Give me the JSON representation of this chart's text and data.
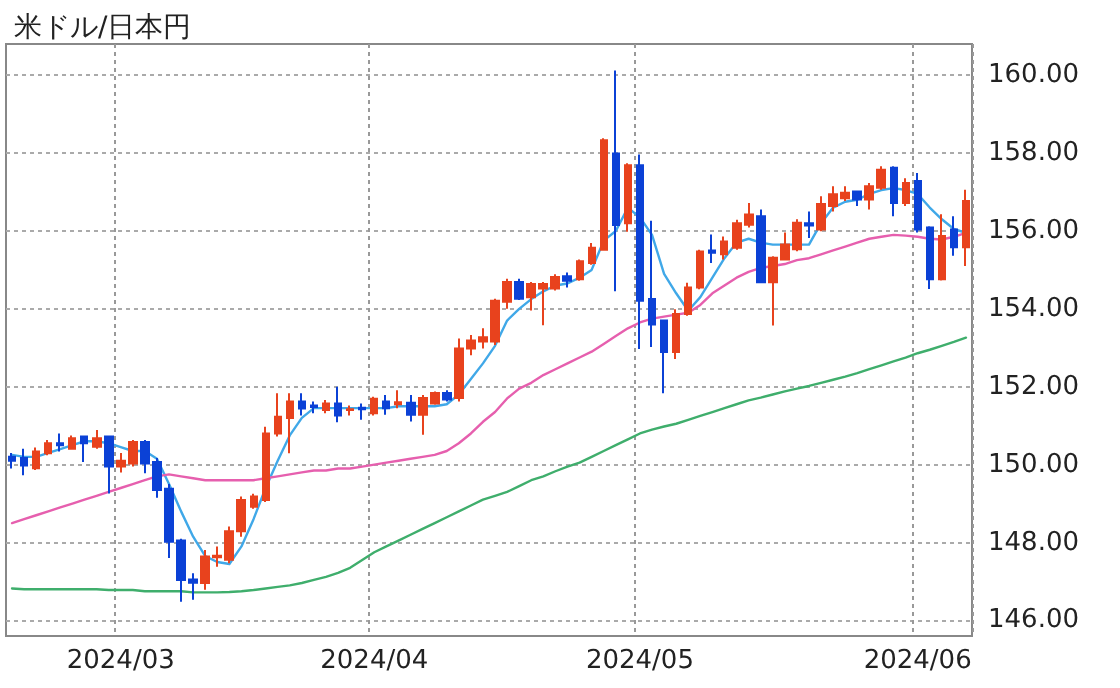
{
  "chart_data": {
    "type": "candlestick",
    "title": "米ドル/日本円",
    "categories": [
      null,
      null,
      null,
      null,
      null,
      null,
      null,
      null,
      null,
      "2024/03",
      null,
      null,
      null,
      null,
      null,
      null,
      null,
      null,
      null,
      null,
      null,
      null,
      null,
      null,
      null,
      null,
      null,
      null,
      null,
      null,
      "2024/04",
      null,
      null,
      null,
      null,
      null,
      null,
      null,
      null,
      null,
      null,
      null,
      null,
      null,
      null,
      null,
      null,
      null,
      null,
      null,
      null,
      null,
      "2024/05",
      null,
      null,
      null,
      null,
      null,
      null,
      null,
      null,
      null,
      null,
      null,
      null,
      null,
      null,
      null,
      null,
      null,
      null,
      null,
      null,
      null,
      null,
      "2024/06",
      null,
      null,
      null,
      null
    ],
    "ohlc": [
      [
        150.2,
        150.3,
        149.9,
        150.1
      ],
      [
        150.17,
        150.41,
        149.73,
        149.98
      ],
      [
        149.91,
        150.44,
        149.86,
        150.34
      ],
      [
        150.29,
        150.63,
        150.24,
        150.55
      ],
      [
        150.55,
        150.8,
        150.34,
        150.5
      ],
      [
        150.41,
        150.75,
        150.38,
        150.68
      ],
      [
        150.72,
        150.75,
        150.07,
        150.55
      ],
      [
        150.46,
        150.89,
        150.41,
        150.68
      ],
      [
        150.72,
        150.75,
        149.26,
        149.95
      ],
      [
        149.95,
        150.3,
        149.8,
        150.1
      ],
      [
        150.03,
        150.63,
        149.95,
        150.58
      ],
      [
        150.58,
        150.63,
        149.78,
        150.03
      ],
      [
        150.07,
        150.17,
        149.15,
        149.35
      ],
      [
        149.38,
        149.5,
        147.6,
        148.02
      ],
      [
        148.05,
        148.1,
        146.48,
        147.04
      ],
      [
        147.05,
        147.21,
        146.53,
        146.97
      ],
      [
        146.96,
        147.81,
        146.79,
        147.64
      ],
      [
        147.62,
        147.9,
        147.38,
        147.66
      ],
      [
        147.56,
        148.41,
        147.47,
        148.29
      ],
      [
        148.29,
        149.18,
        148.15,
        149.09
      ],
      [
        148.92,
        149.25,
        148.87,
        149.18
      ],
      [
        149.09,
        150.97,
        149.04,
        150.8
      ],
      [
        150.8,
        151.83,
        150.72,
        151.23
      ],
      [
        151.2,
        151.83,
        150.29,
        151.62
      ],
      [
        151.62,
        151.83,
        151.26,
        151.44
      ],
      [
        151.52,
        151.62,
        151.32,
        151.48
      ],
      [
        151.4,
        151.66,
        151.32,
        151.57
      ],
      [
        151.57,
        152.0,
        151.09,
        151.26
      ],
      [
        151.4,
        151.52,
        151.26,
        151.42
      ],
      [
        151.46,
        151.57,
        151.15,
        151.42
      ],
      [
        151.32,
        151.74,
        151.26,
        151.69
      ],
      [
        151.62,
        151.79,
        151.28,
        151.45
      ],
      [
        151.55,
        151.91,
        151.45,
        151.6
      ],
      [
        151.59,
        151.79,
        151.11,
        151.28
      ],
      [
        151.28,
        151.79,
        150.77,
        151.71
      ],
      [
        151.57,
        151.88,
        151.54,
        151.84
      ],
      [
        151.84,
        151.91,
        151.62,
        151.67
      ],
      [
        151.71,
        153.24,
        151.62,
        152.98
      ],
      [
        152.98,
        153.33,
        152.81,
        153.19
      ],
      [
        153.16,
        153.5,
        152.98,
        153.27
      ],
      [
        153.16,
        154.26,
        153.07,
        154.21
      ],
      [
        154.18,
        154.77,
        154.0,
        154.69
      ],
      [
        154.69,
        154.77,
        154.23,
        154.26
      ],
      [
        154.3,
        154.69,
        153.96,
        154.64
      ],
      [
        154.52,
        154.69,
        153.58,
        154.64
      ],
      [
        154.52,
        154.89,
        154.47,
        154.82
      ],
      [
        154.84,
        154.93,
        154.55,
        154.72
      ],
      [
        154.76,
        155.27,
        154.72,
        155.22
      ],
      [
        155.18,
        155.69,
        155.13,
        155.57
      ],
      [
        155.52,
        158.38,
        155.5,
        158.33
      ],
      [
        157.99,
        160.12,
        154.45,
        156.15
      ],
      [
        156.2,
        157.74,
        155.98,
        157.69
      ],
      [
        157.69,
        157.96,
        152.97,
        154.21
      ],
      [
        154.25,
        156.26,
        153.02,
        153.6
      ],
      [
        153.7,
        153.72,
        151.83,
        152.89
      ],
      [
        152.89,
        153.99,
        152.71,
        153.87
      ],
      [
        153.87,
        154.67,
        153.82,
        154.55
      ],
      [
        154.55,
        155.52,
        154.5,
        155.47
      ],
      [
        155.5,
        155.91,
        155.18,
        155.44
      ],
      [
        155.4,
        155.86,
        155.27,
        155.73
      ],
      [
        155.57,
        156.29,
        155.52,
        156.2
      ],
      [
        156.16,
        156.72,
        156.09,
        156.42
      ],
      [
        156.38,
        156.55,
        154.66,
        154.68
      ],
      [
        154.68,
        155.35,
        153.57,
        155.31
      ],
      [
        155.27,
        155.96,
        155.24,
        155.65
      ],
      [
        155.53,
        156.3,
        155.48,
        156.21
      ],
      [
        156.2,
        156.5,
        155.82,
        156.14
      ],
      [
        156.04,
        156.89,
        155.99,
        156.69
      ],
      [
        156.64,
        157.15,
        156.5,
        156.94
      ],
      [
        156.84,
        157.15,
        156.77,
        156.98
      ],
      [
        157.01,
        157.03,
        156.64,
        156.81
      ],
      [
        156.81,
        157.23,
        156.55,
        157.15
      ],
      [
        157.11,
        157.66,
        157.06,
        157.57
      ],
      [
        157.62,
        157.66,
        156.38,
        156.72
      ],
      [
        156.72,
        157.35,
        156.64,
        157.23
      ],
      [
        157.28,
        157.49,
        155.96,
        156.04
      ],
      [
        156.09,
        156.12,
        154.51,
        154.76
      ],
      [
        154.76,
        156.43,
        154.73,
        155.87
      ],
      [
        156.04,
        156.38,
        155.36,
        155.58
      ],
      [
        155.58,
        157.06,
        155.1,
        156.77
      ]
    ],
    "colors": [
      "#0b41d6",
      "#0b41d6",
      "#e8421d",
      "#e8421d",
      "#0b41d6",
      "#e8421d",
      "#0b41d6",
      "#e8421d",
      "#0b41d6",
      "#e8421d",
      "#e8421d",
      "#0b41d6",
      "#0b41d6",
      "#0b41d6",
      "#0b41d6",
      "#0b41d6",
      "#e8421d",
      "#e8421d",
      "#e8421d",
      "#e8421d",
      "#e8421d",
      "#e8421d",
      "#e8421d",
      "#e8421d",
      "#0b41d6",
      "#0b41d6",
      "#e8421d",
      "#0b41d6",
      "#e8421d",
      "#0b41d6",
      "#e8421d",
      "#0b41d6",
      "#e8421d",
      "#0b41d6",
      "#e8421d",
      "#e8421d",
      "#0b41d6",
      "#e8421d",
      "#e8421d",
      "#e8421d",
      "#e8421d",
      "#e8421d",
      "#0b41d6",
      "#e8421d",
      "#e8421d",
      "#e8421d",
      "#0b41d6",
      "#e8421d",
      "#e8421d",
      "#e8421d",
      "#0b41d6",
      "#e8421d",
      "#0b41d6",
      "#0b41d6",
      "#0b41d6",
      "#e8421d",
      "#e8421d",
      "#e8421d",
      "#0b41d6",
      "#e8421d",
      "#e8421d",
      "#e8421d",
      "#0b41d6",
      "#e8421d",
      "#e8421d",
      "#e8421d",
      "#0b41d6",
      "#e8421d",
      "#e8421d",
      "#e8421d",
      "#0b41d6",
      "#e8421d",
      "#e8421d",
      "#0b41d6",
      "#e8421d",
      "#0b41d6",
      "#0b41d6",
      "#e8421d",
      "#0b41d6",
      "#e8421d"
    ],
    "series": [
      {
        "type": "line",
        "color": "#40a8e8",
        "values": [
          150.25,
          150.2,
          150.2,
          150.3,
          150.4,
          150.5,
          150.6,
          150.6,
          150.55,
          150.45,
          150.35,
          150.35,
          150.15,
          149.5,
          148.8,
          148.15,
          147.65,
          147.5,
          147.45,
          147.9,
          148.6,
          149.4,
          150.1,
          150.75,
          151.2,
          151.45,
          151.45,
          151.45,
          151.45,
          151.45,
          151.45,
          151.45,
          151.5,
          151.5,
          151.5,
          151.5,
          151.55,
          151.8,
          152.2,
          152.6,
          153.05,
          153.7,
          154.0,
          154.25,
          154.45,
          154.6,
          154.65,
          154.8,
          155.0,
          155.75,
          156.0,
          156.6,
          156.35,
          155.9,
          154.9,
          154.4,
          153.95,
          154.3,
          154.8,
          155.3,
          155.7,
          155.8,
          155.7,
          155.65,
          155.65,
          155.65,
          155.65,
          156.2,
          156.6,
          156.75,
          156.8,
          156.95,
          157.05,
          157.1,
          157.05,
          156.95,
          156.6,
          156.3,
          156.05,
          155.95
        ]
      },
      {
        "type": "line",
        "color": "#e65fae",
        "values": [
          148.5,
          148.6,
          148.7,
          148.8,
          148.9,
          149.0,
          149.1,
          149.2,
          149.3,
          149.4,
          149.5,
          149.6,
          149.7,
          149.75,
          149.7,
          149.65,
          149.6,
          149.6,
          149.6,
          149.6,
          149.6,
          149.65,
          149.7,
          149.75,
          149.8,
          149.85,
          149.85,
          149.9,
          149.9,
          149.95,
          150.0,
          150.05,
          150.1,
          150.15,
          150.2,
          150.25,
          150.35,
          150.55,
          150.8,
          151.1,
          151.35,
          151.7,
          151.95,
          152.1,
          152.3,
          152.45,
          152.6,
          152.75,
          152.9,
          153.1,
          153.3,
          153.5,
          153.65,
          153.75,
          153.8,
          153.85,
          153.9,
          154.1,
          154.4,
          154.6,
          154.8,
          154.95,
          155.05,
          155.1,
          155.15,
          155.25,
          155.3,
          155.4,
          155.5,
          155.6,
          155.7,
          155.8,
          155.85,
          155.9,
          155.88,
          155.85,
          155.8,
          155.78,
          155.85,
          155.95
        ]
      },
      {
        "type": "line",
        "color": "#3fae6c",
        "values": [
          146.82,
          146.8,
          146.8,
          146.8,
          146.8,
          146.8,
          146.8,
          146.8,
          146.78,
          146.78,
          146.78,
          146.75,
          146.75,
          146.75,
          146.75,
          146.72,
          146.72,
          146.72,
          146.73,
          146.75,
          146.78,
          146.82,
          146.86,
          146.9,
          146.96,
          147.04,
          147.12,
          147.22,
          147.35,
          147.55,
          147.75,
          147.9,
          148.05,
          148.2,
          148.35,
          148.5,
          148.65,
          148.8,
          148.95,
          149.1,
          149.2,
          149.3,
          149.45,
          149.6,
          149.7,
          149.83,
          149.95,
          150.05,
          150.2,
          150.35,
          150.5,
          150.65,
          150.8,
          150.9,
          150.98,
          151.05,
          151.15,
          151.25,
          151.35,
          151.45,
          151.55,
          151.65,
          151.72,
          151.8,
          151.88,
          151.95,
          152.02,
          152.1,
          152.18,
          152.26,
          152.35,
          152.45,
          152.55,
          152.65,
          152.75,
          152.86,
          152.95,
          153.05,
          153.15,
          153.26
        ]
      }
    ],
    "ylim": [
      145.6,
      160.8
    ],
    "yticks": [
      {
        "value": 146,
        "label": "146.00"
      },
      {
        "value": 148,
        "label": "148.00"
      },
      {
        "value": 150,
        "label": "150.00"
      },
      {
        "value": 152,
        "label": "152.00"
      },
      {
        "value": 154,
        "label": "154.00"
      },
      {
        "value": 156,
        "label": "156.00"
      },
      {
        "value": 158,
        "label": "158.00"
      },
      {
        "value": 160,
        "label": "160.00"
      }
    ],
    "grid": true,
    "marker": "none",
    "line_style": "solid"
  }
}
